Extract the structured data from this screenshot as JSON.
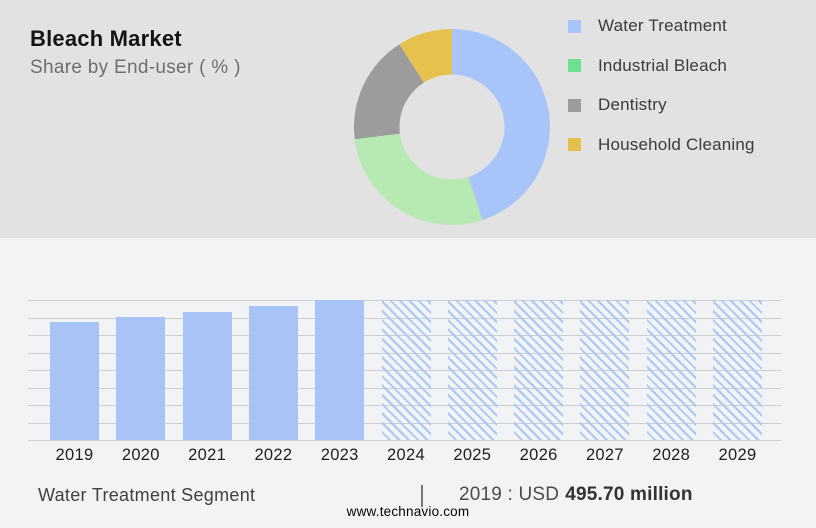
{
  "header": {
    "title": "Bleach Market",
    "subtitle": "Share by End-user ( % )"
  },
  "colors": {
    "header_bg": "#e2e2e3",
    "body_bg": "#f2f3f5",
    "bar_blue": "#a8c4f7",
    "hatch_blue": "#aac7f6",
    "grid_line": "#cccdd1",
    "donut_blue": "#a7c5f8",
    "donut_green": "#b7e9b3",
    "donut_gray": "#9c9c9c",
    "donut_yellow": "#e6c14d"
  },
  "chart_data": [
    {
      "type": "pie",
      "subtype": "donut",
      "title": "Share by End-user ( % )",
      "legend_position": "right",
      "slices": [
        {
          "label": "Water Treatment",
          "percent": 45,
          "color": "#a7c5f8",
          "legend_color": "#a7c5f8"
        },
        {
          "label": "Industrial Bleach",
          "percent": 28,
          "color": "#b7e9b3",
          "legend_color": "#6fdf90"
        },
        {
          "label": "Dentistry",
          "percent": 18,
          "color": "#9c9c9c",
          "legend_color": "#9c9c9c"
        },
        {
          "label": "Household Cleaning",
          "percent": 9,
          "color": "#e6c14d",
          "legend_color": "#e4c04b"
        }
      ]
    },
    {
      "type": "bar",
      "title": "Water Treatment Segment",
      "categories": [
        "2019",
        "2020",
        "2021",
        "2022",
        "2023",
        "2024",
        "2025",
        "2026",
        "2027",
        "2028",
        "2029"
      ],
      "series": [
        {
          "name": "Water Treatment segment market size",
          "relative_heights": [
            0.84,
            0.88,
            0.917,
            0.957,
            1.0,
            1.0,
            1.0,
            1.0,
            1.0,
            1.0,
            1.0
          ],
          "bar_styles": [
            "solid",
            "solid",
            "solid",
            "solid",
            "solid",
            "hatched",
            "hatched",
            "hatched",
            "hatched",
            "hatched",
            "hatched"
          ],
          "values_usd_million_estimated": [
            495.7,
            519,
            541,
            564,
            590,
            null,
            null,
            null,
            null,
            null,
            null
          ]
        }
      ],
      "known_value": {
        "year": "2019",
        "value_usd_million": 495.7
      },
      "xlabel": "",
      "ylabel": "",
      "y_tick_labels_visible": false,
      "gridlines": 9,
      "grid": "horizontal",
      "forecast_years_hatched": [
        "2024",
        "2025",
        "2026",
        "2027",
        "2028",
        "2029"
      ]
    }
  ],
  "footer": {
    "segment_label": "Water Treatment Segment",
    "divider": "|",
    "value_prefix": "2019 : USD",
    "value_bold": "495.70 million",
    "website": "www.technavio.com"
  }
}
